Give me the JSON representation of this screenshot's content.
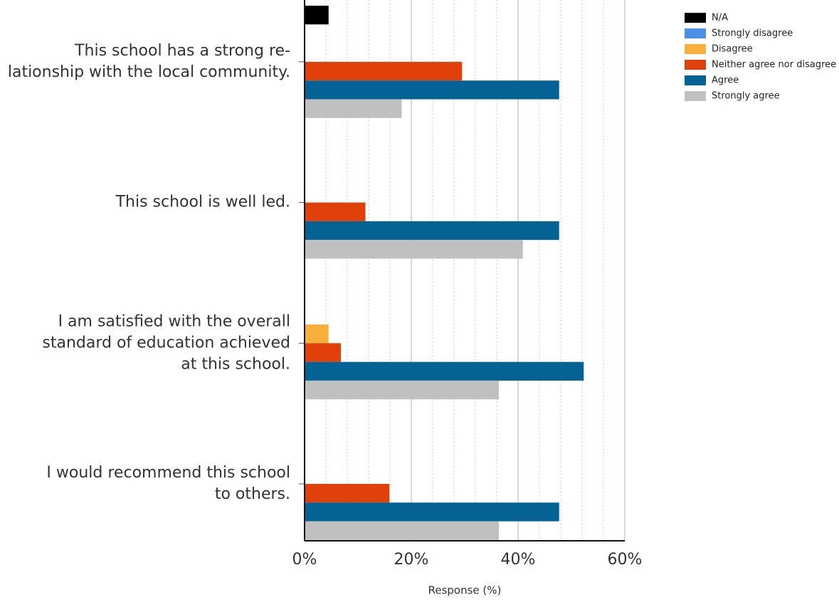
{
  "chart_data": {
    "type": "hbar",
    "categories": [
      [
        "This school has a strong re-",
        "lationship with the local community."
      ],
      [
        "This school is well led."
      ],
      [
        "I am satisfied with the overall",
        "standard of education achieved",
        "at this school."
      ],
      [
        "I would recommend this school",
        "to others."
      ]
    ],
    "series": [
      {
        "name": "N/A",
        "color": "#000000",
        "values": [
          4.5,
          0,
          0,
          0
        ]
      },
      {
        "name": "Strongly disagree",
        "color": "#4a8fe7",
        "values": [
          0,
          0,
          0,
          0
        ]
      },
      {
        "name": "Disagree",
        "color": "#f7b03c",
        "values": [
          0,
          0,
          4.5,
          0
        ]
      },
      {
        "name": "Neither agree nor disagree",
        "color": "#e0400a",
        "values": [
          29.5,
          11.4,
          6.8,
          15.9
        ]
      },
      {
        "name": "Agree",
        "color": "#046394",
        "values": [
          47.7,
          47.7,
          52.3,
          47.7
        ]
      },
      {
        "name": "Strongly agree",
        "color": "#c0c0c0",
        "values": [
          18.2,
          40.9,
          36.4,
          36.4
        ]
      }
    ],
    "xlim": [
      0,
      60
    ],
    "xticks": [
      {
        "value": 0,
        "label": "0%"
      },
      {
        "value": 20,
        "label": "20%"
      },
      {
        "value": 40,
        "label": "40%"
      },
      {
        "value": 60,
        "label": "60%"
      }
    ],
    "xlabel": "Response (%)",
    "grid": true,
    "legend": "top-right"
  }
}
